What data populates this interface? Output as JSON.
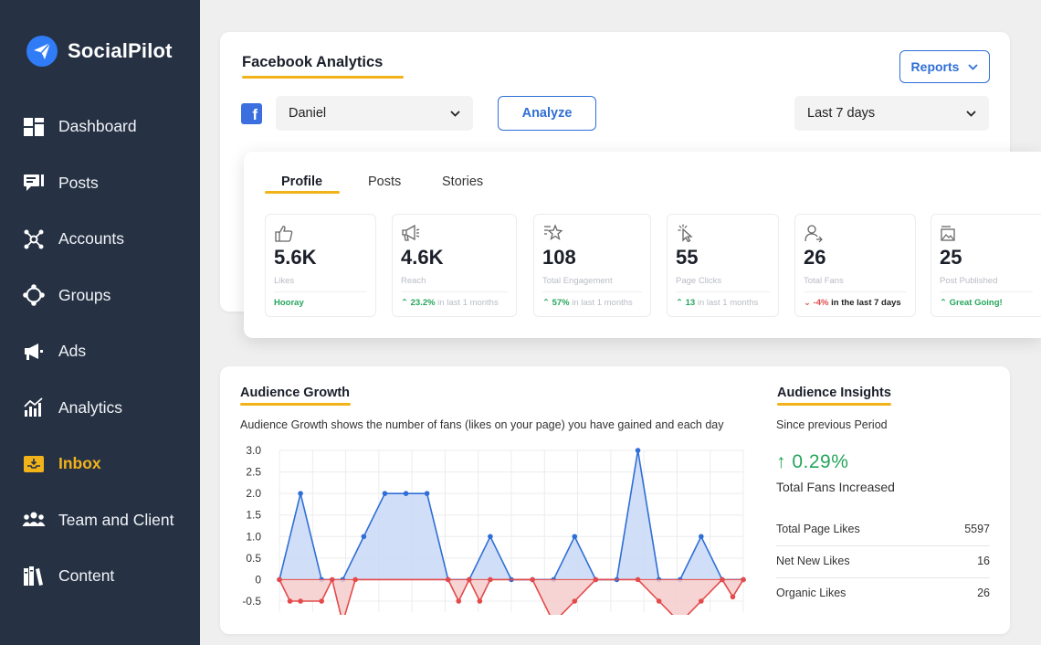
{
  "brand": {
    "name": "SocialPilot"
  },
  "nav": [
    {
      "label": "Dashboard",
      "icon": "dashboard-icon"
    },
    {
      "label": "Posts",
      "icon": "posts-icon"
    },
    {
      "label": "Accounts",
      "icon": "accounts-icon"
    },
    {
      "label": "Groups",
      "icon": "groups-icon"
    },
    {
      "label": "Ads",
      "icon": "megaphone-icon"
    },
    {
      "label": "Analytics",
      "icon": "analytics-icon"
    },
    {
      "label": "Inbox",
      "icon": "inbox-icon",
      "active": true
    },
    {
      "label": "Team and Client",
      "icon": "team-icon"
    },
    {
      "label": "Content",
      "icon": "content-library-icon"
    }
  ],
  "colors": {
    "sidebar": "#263244",
    "accent": "#f2b21a",
    "primary": "#2f6fd6",
    "positive": "#25a55b",
    "negative": "#e44a4a"
  },
  "fb": {
    "title": "Facebook Analytics",
    "reports_label": "Reports",
    "account_select": "Daniel",
    "analyze_label": "Analyze",
    "period_select": "Last 7 days"
  },
  "tabs": [
    "Profile",
    "Posts",
    "Stories"
  ],
  "metrics": [
    {
      "value": "5.6K",
      "label": "Likes",
      "foot_main": "Hooray",
      "foot_rest": "",
      "trend": "none",
      "tone": "green",
      "icon": "thumbs-up-icon"
    },
    {
      "value": "4.6K",
      "label": "Reach",
      "foot_main": "23.2%",
      "foot_rest": " in last 1 months",
      "trend": "up",
      "tone": "green",
      "icon": "megaphone-icon"
    },
    {
      "value": "108",
      "label": "Total Engagement",
      "foot_main": "57%",
      "foot_rest": " in last 1 months",
      "trend": "up",
      "tone": "green",
      "icon": "star-icon"
    },
    {
      "value": "55",
      "label": "Page Clicks",
      "foot_main": "13",
      "foot_rest": " in last 1 months",
      "trend": "up",
      "tone": "green",
      "icon": "cursor-click-icon"
    },
    {
      "value": "26",
      "label": "Total Fans",
      "foot_main": "-4%",
      "foot_rest": " in the last 7 days",
      "trend": "down",
      "tone": "red",
      "icon": "user-icon"
    },
    {
      "value": "25",
      "label": "Post Published",
      "foot_main": "Great Going!",
      "foot_rest": "",
      "trend": "up",
      "tone": "green",
      "icon": "image-icon"
    }
  ],
  "audience": {
    "title": "Audience Growth",
    "description": "Audience Growth shows the number of fans (likes on your page) you have gained and each day"
  },
  "chart_data": {
    "type": "area",
    "yticks": [
      "3.0",
      "2.5",
      "2.0",
      "1.5",
      "1.0",
      "0.5",
      "0",
      "-0.5"
    ],
    "ylim": [
      -1,
      3
    ],
    "xlim": [
      0,
      22
    ],
    "grid": true,
    "series": [
      {
        "color": "#2f6fd6",
        "fill": "#c9d8f6",
        "points": [
          [
            0,
            0
          ],
          [
            1,
            2
          ],
          [
            2,
            0
          ],
          [
            3,
            0
          ],
          [
            4,
            1
          ],
          [
            5,
            2
          ],
          [
            6,
            2
          ],
          [
            7,
            2
          ],
          [
            8,
            0
          ],
          [
            9,
            0
          ],
          [
            10,
            1
          ],
          [
            11,
            0
          ],
          [
            12,
            0
          ],
          [
            13,
            0
          ],
          [
            14,
            1
          ],
          [
            15,
            0
          ],
          [
            16,
            0
          ],
          [
            17,
            3
          ],
          [
            18,
            0
          ],
          [
            19,
            0
          ],
          [
            20,
            1
          ],
          [
            21,
            0
          ],
          [
            22,
            0
          ]
        ]
      },
      {
        "color": "#e44a4a",
        "fill": "#f6cccc",
        "dashed": true,
        "points": [
          [
            0,
            0
          ],
          [
            0.5,
            -0.5
          ],
          [
            1,
            -0.5
          ],
          [
            2,
            -0.5
          ],
          [
            2.5,
            0
          ],
          [
            3,
            -1
          ],
          [
            3.6,
            0
          ],
          [
            8,
            0
          ],
          [
            8.5,
            -0.5
          ],
          [
            9,
            0
          ],
          [
            9.5,
            -0.5
          ],
          [
            10,
            0
          ],
          [
            12,
            0
          ],
          [
            13,
            -1
          ],
          [
            14,
            -0.5
          ],
          [
            15,
            0
          ],
          [
            17,
            0
          ],
          [
            18,
            -0.5
          ],
          [
            19,
            -1
          ],
          [
            20,
            -0.5
          ],
          [
            21,
            0
          ],
          [
            21.5,
            -0.4
          ],
          [
            22,
            0
          ]
        ]
      }
    ]
  },
  "insights": {
    "title": "Audience Insights",
    "subtitle": "Since previous Period",
    "percent": "↑ 0.29%",
    "caption": "Total Fans Increased",
    "rows": [
      {
        "label": "Total Page Likes",
        "value": "5597"
      },
      {
        "label": "Net New Likes",
        "value": "16"
      },
      {
        "label": "Organic Likes",
        "value": "26"
      }
    ]
  }
}
